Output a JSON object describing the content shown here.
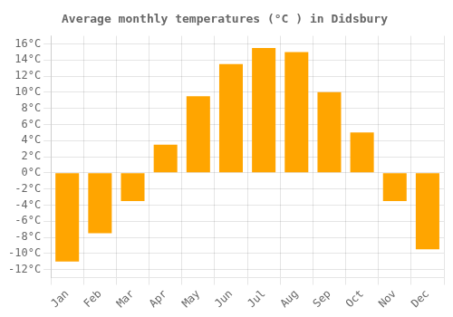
{
  "chart_data": {
    "type": "bar",
    "title": "Average monthly temperatures (°C ) in Didsbury",
    "categories": [
      "Jan",
      "Feb",
      "Mar",
      "Apr",
      "May",
      "Jun",
      "Jul",
      "Aug",
      "Sep",
      "Oct",
      "Nov",
      "Dec"
    ],
    "values": [
      -11,
      -7.5,
      -3.5,
      3.5,
      9.5,
      13.5,
      15.5,
      15,
      10,
      5,
      -3.5,
      -9.5
    ],
    "color": "#FFA500",
    "ylim": [
      -13,
      17
    ],
    "yticks": [
      {
        "value": -12,
        "label": "-12°C"
      },
      {
        "value": -10,
        "label": "-10°C"
      },
      {
        "value": -8,
        "label": "-8°C"
      },
      {
        "value": -6,
        "label": "-6°C"
      },
      {
        "value": -4,
        "label": "-4°C"
      },
      {
        "value": -2,
        "label": "-2°C"
      },
      {
        "value": 0,
        "label": "0°C"
      },
      {
        "value": 2,
        "label": "2°C"
      },
      {
        "value": 4,
        "label": "4°C"
      },
      {
        "value": 6,
        "label": "6°C"
      },
      {
        "value": 8,
        "label": "8°C"
      },
      {
        "value": 10,
        "label": "10°C"
      },
      {
        "value": 12,
        "label": "12°C"
      },
      {
        "value": 14,
        "label": "14°C"
      },
      {
        "value": 16,
        "label": "16°C"
      }
    ],
    "grid": true
  }
}
